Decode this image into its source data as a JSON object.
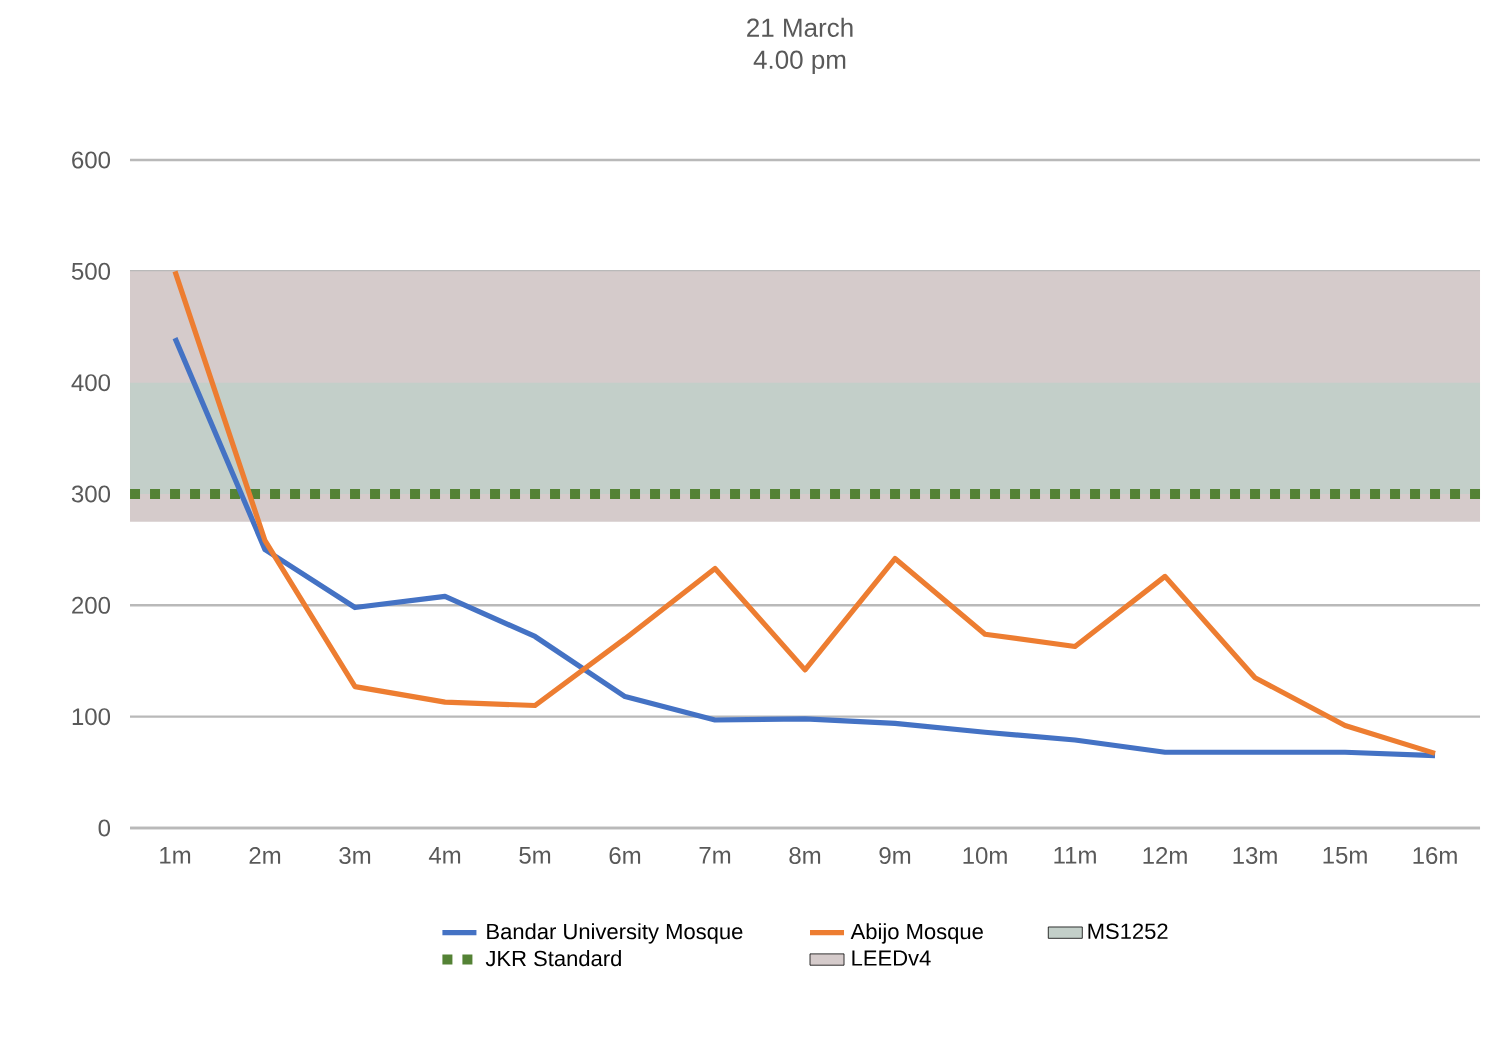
{
  "chart_data": {
    "type": "line",
    "title": "21 March",
    "subtitle": "4.00 pm",
    "categories": [
      "1m",
      "2m",
      "3m",
      "4m",
      "5m",
      "6m",
      "7m",
      "8m",
      "9m",
      "10m",
      "11m",
      "12m",
      "13m",
      "15m",
      "16m"
    ],
    "series": [
      {
        "name": "Bandar University Mosque",
        "color": "#4472c4",
        "values": [
          440,
          250,
          198,
          208,
          172,
          118,
          97,
          98,
          94,
          86,
          79,
          68,
          68,
          68,
          65
        ]
      },
      {
        "name": "Abijo Mosque",
        "color": "#ed7d31",
        "values": [
          500,
          258,
          127,
          113,
          110,
          170,
          233,
          142,
          242,
          174,
          163,
          226,
          135,
          92,
          67
        ]
      }
    ],
    "ylim": [
      0,
      600
    ],
    "yticks": [
      0,
      100,
      200,
      300,
      400,
      500,
      600
    ],
    "bands": [
      {
        "axis": "y",
        "from": 275,
        "to": 500,
        "label": "LEEDv4",
        "color": "#d5cbcb"
      },
      {
        "axis": "y",
        "from": 300,
        "to": 400,
        "label": "MS1252",
        "color": "#c3cfc9"
      }
    ],
    "ref_lines": [
      {
        "axis": "y",
        "value": 300,
        "label": "JKR Standard",
        "color": "#548235",
        "line_style": "dotted"
      }
    ],
    "grid": "y",
    "legend": "bottom",
    "marker": "none",
    "line_style": "solid"
  }
}
